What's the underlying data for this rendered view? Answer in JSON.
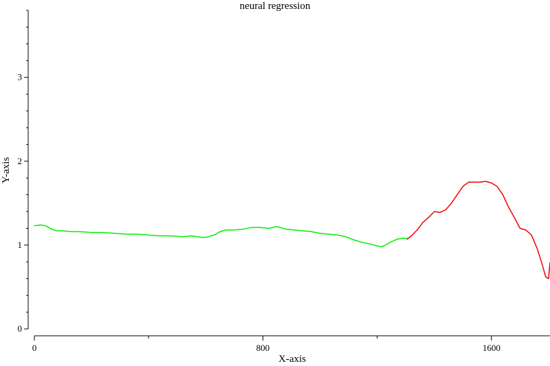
{
  "chart_data": {
    "type": "line",
    "title": "neural regression",
    "xlabel": "X-axis",
    "ylabel": "Y-axis",
    "xlim": [
      0,
      1805
    ],
    "ylim": [
      0,
      3.8
    ],
    "x_ticks": [
      0,
      800,
      1600
    ],
    "x_minor_ticks": [
      400,
      1200
    ],
    "y_ticks": [
      0,
      1,
      2,
      3
    ],
    "grid": false,
    "legend": "none",
    "series": [
      {
        "color": "#00ee00",
        "points": [
          [
            0,
            1.23
          ],
          [
            20,
            1.24
          ],
          [
            40,
            1.23
          ],
          [
            60,
            1.19
          ],
          [
            80,
            1.17
          ],
          [
            100,
            1.17
          ],
          [
            130,
            1.16
          ],
          [
            160,
            1.16
          ],
          [
            200,
            1.15
          ],
          [
            240,
            1.15
          ],
          [
            280,
            1.14
          ],
          [
            320,
            1.13
          ],
          [
            360,
            1.13
          ],
          [
            400,
            1.12
          ],
          [
            440,
            1.11
          ],
          [
            480,
            1.11
          ],
          [
            520,
            1.1
          ],
          [
            550,
            1.11
          ],
          [
            570,
            1.1
          ],
          [
            590,
            1.09
          ],
          [
            610,
            1.1
          ],
          [
            630,
            1.12
          ],
          [
            650,
            1.16
          ],
          [
            670,
            1.18
          ],
          [
            700,
            1.18
          ],
          [
            730,
            1.19
          ],
          [
            760,
            1.21
          ],
          [
            790,
            1.21
          ],
          [
            820,
            1.2
          ],
          [
            850,
            1.22
          ],
          [
            880,
            1.19
          ],
          [
            910,
            1.18
          ],
          [
            940,
            1.17
          ],
          [
            970,
            1.16
          ],
          [
            1000,
            1.14
          ],
          [
            1030,
            1.13
          ],
          [
            1060,
            1.12
          ],
          [
            1090,
            1.1
          ],
          [
            1120,
            1.06
          ],
          [
            1150,
            1.03
          ],
          [
            1180,
            1.01
          ],
          [
            1200,
            0.99
          ],
          [
            1215,
            0.98
          ],
          [
            1230,
            1.0
          ],
          [
            1250,
            1.04
          ],
          [
            1270,
            1.07
          ],
          [
            1290,
            1.08
          ],
          [
            1305,
            1.08
          ]
        ]
      },
      {
        "color": "#ee0000",
        "points": [
          [
            1305,
            1.07
          ],
          [
            1320,
            1.11
          ],
          [
            1340,
            1.18
          ],
          [
            1360,
            1.27
          ],
          [
            1380,
            1.33
          ],
          [
            1400,
            1.4
          ],
          [
            1420,
            1.39
          ],
          [
            1440,
            1.42
          ],
          [
            1460,
            1.5
          ],
          [
            1480,
            1.6
          ],
          [
            1500,
            1.7
          ],
          [
            1520,
            1.75
          ],
          [
            1540,
            1.75
          ],
          [
            1560,
            1.75
          ],
          [
            1580,
            1.76
          ],
          [
            1600,
            1.74
          ],
          [
            1620,
            1.7
          ],
          [
            1640,
            1.6
          ],
          [
            1660,
            1.45
          ],
          [
            1680,
            1.33
          ],
          [
            1700,
            1.2
          ],
          [
            1720,
            1.18
          ],
          [
            1740,
            1.12
          ],
          [
            1760,
            0.96
          ],
          [
            1775,
            0.8
          ],
          [
            1790,
            0.62
          ],
          [
            1800,
            0.6
          ],
          [
            1805,
            0.79
          ]
        ]
      }
    ]
  }
}
